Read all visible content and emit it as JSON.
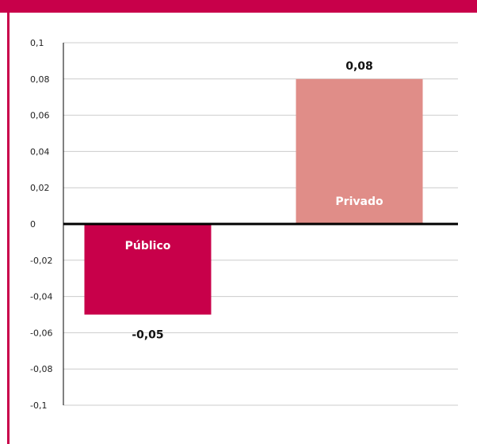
{
  "colors": {
    "accent": "#c8004a",
    "publico": "#c8004a",
    "privado": "#e08d88",
    "grid": "#cccccc",
    "axis": "#000000"
  },
  "chart_data": {
    "type": "bar",
    "categories": [
      "Público",
      "Privado"
    ],
    "values": [
      -0.05,
      0.08
    ],
    "value_labels": [
      "-0,05",
      "0,08"
    ],
    "ylim": [
      -0.1,
      0.1
    ],
    "yticks": [
      0.1,
      0.08,
      0.06,
      0.04,
      0.02,
      0,
      -0.02,
      -0.04,
      -0.06,
      -0.08,
      -0.1
    ],
    "ytick_labels": [
      "0,1",
      "0,08",
      "0,06",
      "0,04",
      "0,02",
      "0",
      "-0,02",
      "-0,04",
      "-0,06",
      "-0,08",
      "-0,1"
    ],
    "grid": true,
    "legend": "none",
    "title": "",
    "xlabel": "",
    "ylabel": ""
  }
}
